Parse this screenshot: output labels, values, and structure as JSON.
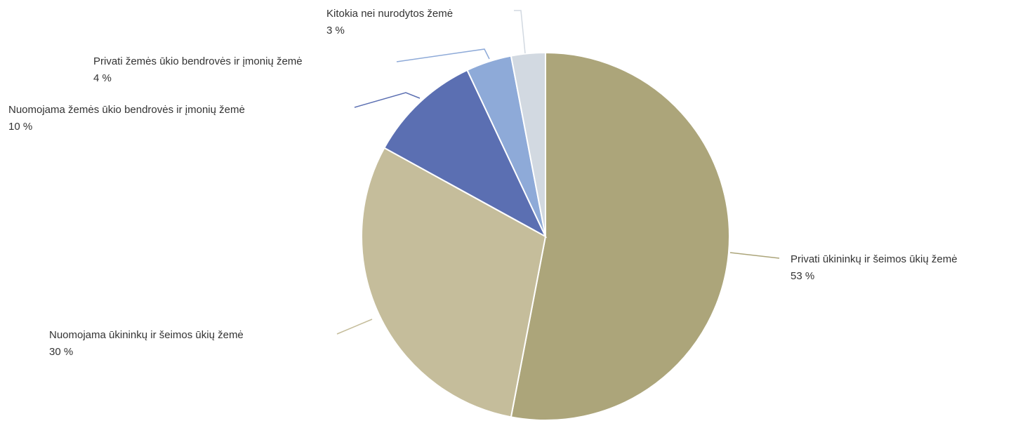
{
  "chart_data": {
    "type": "pie",
    "categories": [
      "Privati ūkininkų ir šeimos ūkių žemė",
      "Nuomojama ūkininkų ir šeimos ūkių žemė",
      "Nuomojama žemės ūkio bendrovės ir įmonių žemė",
      "Privati žemės ūkio bendrovės ir įmonių žemė",
      "Kitokia nei nurodytos žemė"
    ],
    "values": [
      53,
      30,
      10,
      4,
      3
    ],
    "value_labels": [
      "53 %",
      "30 %",
      "10 %",
      "4 %",
      "3 %"
    ],
    "colors": [
      "#aca57a",
      "#c5bd9b",
      "#5b6fb2",
      "#8eaad8",
      "#d2d9e1"
    ]
  }
}
